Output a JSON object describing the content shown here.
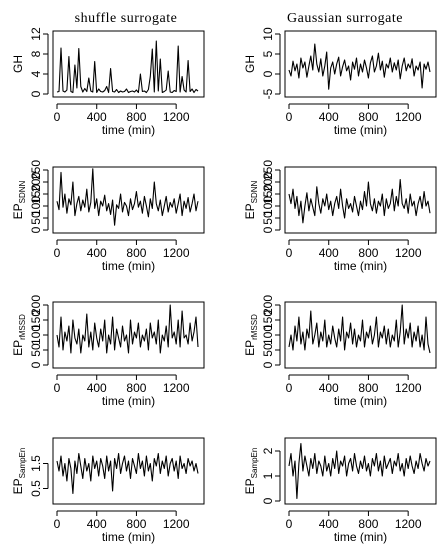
{
  "columns": [
    "shuffle surrogate",
    "Gaussian surrogate"
  ],
  "chart_data": [
    {
      "type": "line",
      "column": 0,
      "row": 0,
      "ylabel": "GH",
      "ylabel_sub": "",
      "xlabel": "time (min)",
      "xlim": [
        0,
        1440
      ],
      "ylim": [
        0,
        12
      ],
      "xticks": [
        0,
        400,
        800,
        1200
      ],
      "yticks": [
        0,
        4,
        8,
        12
      ],
      "x": [
        0,
        20,
        40,
        60,
        80,
        100,
        120,
        140,
        160,
        180,
        200,
        220,
        240,
        260,
        280,
        300,
        320,
        340,
        360,
        380,
        400,
        420,
        440,
        460,
        480,
        500,
        520,
        540,
        560,
        580,
        600,
        620,
        640,
        660,
        680,
        700,
        720,
        740,
        760,
        780,
        800,
        820,
        840,
        860,
        880,
        900,
        920,
        940,
        960,
        980,
        1000,
        1020,
        1040,
        1060,
        1080,
        1100,
        1120,
        1140,
        1160,
        1180,
        1200,
        1220,
        1240,
        1260,
        1280,
        1300,
        1320,
        1340,
        1360,
        1380,
        1400,
        1420
      ],
      "y": [
        0.4,
        0.5,
        9.2,
        0.6,
        0.4,
        0.8,
        7.5,
        0.5,
        0.3,
        5.8,
        1.2,
        9.1,
        1.5,
        0.4,
        1.1,
        0.5,
        3.2,
        0.6,
        0.4,
        6.5,
        0.3,
        1.0,
        0.5,
        0.4,
        0.7,
        1.5,
        0.3,
        5.1,
        0.5,
        0.4,
        0.9,
        0.3,
        0.6,
        0.4,
        0.5,
        1.0,
        0.3,
        0.5,
        0.6,
        0.4,
        0.8,
        0.3,
        4.0,
        0.5,
        0.6,
        0.3,
        0.9,
        3.5,
        9.0,
        0.4,
        10.6,
        0.6,
        7.0,
        0.3,
        0.5,
        0.8,
        4.6,
        0.4,
        0.3,
        0.7,
        0.5,
        9.6,
        0.4,
        3.5,
        0.8,
        0.4,
        6.7,
        0.5,
        1.0,
        0.3,
        0.9,
        0.6
      ]
    },
    {
      "type": "line",
      "column": 1,
      "row": 0,
      "ylabel": "GH",
      "ylabel_sub": "",
      "xlabel": "time (min)",
      "xlim": [
        0,
        1440
      ],
      "ylim": [
        -5,
        10
      ],
      "xticks": [
        0,
        400,
        800,
        1200
      ],
      "yticks": [
        -5,
        0,
        5,
        10
      ],
      "x": [
        0,
        20,
        40,
        60,
        80,
        100,
        120,
        140,
        160,
        180,
        200,
        220,
        240,
        260,
        280,
        300,
        320,
        340,
        360,
        380,
        400,
        420,
        440,
        460,
        480,
        500,
        520,
        540,
        560,
        580,
        600,
        620,
        640,
        660,
        680,
        700,
        720,
        740,
        760,
        780,
        800,
        820,
        840,
        860,
        880,
        900,
        920,
        940,
        960,
        980,
        1000,
        1020,
        1040,
        1060,
        1080,
        1100,
        1120,
        1140,
        1160,
        1180,
        1200,
        1220,
        1240,
        1260,
        1280,
        1300,
        1320,
        1340,
        1360,
        1380,
        1400,
        1420
      ],
      "y": [
        1.0,
        -0.5,
        3.2,
        0.8,
        2.5,
        -1.0,
        4.0,
        1.5,
        3.0,
        -0.8,
        2.0,
        4.5,
        1.0,
        7.5,
        2.5,
        0.5,
        3.8,
        -0.5,
        2.0,
        5.5,
        -3.8,
        1.5,
        3.0,
        0.0,
        2.5,
        4.2,
        -0.5,
        1.8,
        3.5,
        0.8,
        2.0,
        -1.5,
        3.0,
        1.2,
        4.0,
        -0.5,
        2.5,
        0.5,
        3.5,
        1.5,
        -1.0,
        2.8,
        4.5,
        0.5,
        2.0,
        5.2,
        1.0,
        3.2,
        -0.8,
        2.5,
        1.5,
        4.0,
        0.5,
        2.8,
        1.0,
        3.5,
        -1.2,
        2.0,
        4.0,
        0.8,
        2.5,
        1.5,
        3.8,
        -0.5,
        2.0,
        1.0,
        3.0,
        -3.5,
        2.5,
        1.2,
        3.0,
        0.5
      ]
    },
    {
      "type": "line",
      "column": 0,
      "row": 1,
      "ylabel": "EP",
      "ylabel_sub": "SDNN",
      "xlabel": "time (min)",
      "xlim": [
        0,
        1440
      ],
      "ylim": [
        0,
        250
      ],
      "xticks": [
        0,
        400,
        800,
        1200
      ],
      "yticks": [
        0,
        50,
        100,
        150,
        200,
        250
      ],
      "x": [
        0,
        20,
        40,
        60,
        80,
        100,
        120,
        140,
        160,
        180,
        200,
        220,
        240,
        260,
        280,
        300,
        320,
        340,
        360,
        380,
        400,
        420,
        440,
        460,
        480,
        500,
        520,
        540,
        560,
        580,
        600,
        620,
        640,
        660,
        680,
        700,
        720,
        740,
        760,
        780,
        800,
        820,
        840,
        860,
        880,
        900,
        920,
        940,
        960,
        980,
        1000,
        1020,
        1040,
        1060,
        1080,
        1100,
        1120,
        1140,
        1160,
        1180,
        1200,
        1220,
        1240,
        1260,
        1280,
        1300,
        1320,
        1340,
        1360,
        1380,
        1400,
        1420
      ],
      "y": [
        120,
        85,
        240,
        95,
        150,
        70,
        130,
        105,
        200,
        60,
        110,
        140,
        80,
        125,
        95,
        170,
        75,
        115,
        255,
        90,
        130,
        60,
        120,
        100,
        145,
        80,
        110,
        65,
        125,
        20,
        105,
        90,
        150,
        75,
        115,
        100,
        60,
        130,
        85,
        110,
        160,
        95,
        120,
        70,
        140,
        100,
        55,
        130,
        90,
        200,
        110,
        80,
        125,
        60,
        100,
        140,
        75,
        115,
        95,
        130,
        70,
        110,
        150,
        60,
        120,
        90,
        135,
        75,
        110,
        150,
        80,
        120
      ]
    },
    {
      "type": "line",
      "column": 1,
      "row": 1,
      "ylabel": "EP",
      "ylabel_sub": "SDNN",
      "xlabel": "time (min)",
      "xlim": [
        0,
        1440
      ],
      "ylim": [
        0,
        250
      ],
      "xticks": [
        0,
        400,
        800,
        1200
      ],
      "yticks": [
        0,
        50,
        100,
        150,
        200,
        250
      ],
      "x": [
        0,
        20,
        40,
        60,
        80,
        100,
        120,
        140,
        160,
        180,
        200,
        220,
        240,
        260,
        280,
        300,
        320,
        340,
        360,
        380,
        400,
        420,
        440,
        460,
        480,
        500,
        520,
        540,
        560,
        580,
        600,
        620,
        640,
        660,
        680,
        700,
        720,
        740,
        760,
        780,
        800,
        820,
        840,
        860,
        880,
        900,
        920,
        940,
        960,
        980,
        1000,
        1020,
        1040,
        1060,
        1080,
        1100,
        1120,
        1140,
        1160,
        1180,
        1200,
        1220,
        1240,
        1260,
        1280,
        1300,
        1320,
        1340,
        1360,
        1380,
        1400,
        1420
      ],
      "y": [
        150,
        110,
        170,
        90,
        140,
        60,
        120,
        30,
        100,
        155,
        80,
        130,
        95,
        60,
        180,
        110,
        70,
        130,
        100,
        150,
        85,
        120,
        60,
        110,
        140,
        90,
        170,
        100,
        50,
        130,
        90,
        110,
        75,
        140,
        100,
        60,
        120,
        85,
        160,
        100,
        200,
        110,
        80,
        130,
        70,
        120,
        100,
        150,
        60,
        130,
        90,
        110,
        170,
        80,
        140,
        100,
        210,
        110,
        90,
        130,
        70,
        150,
        100,
        120,
        60,
        110,
        140,
        90,
        160,
        100,
        120,
        70
      ]
    },
    {
      "type": "line",
      "column": 0,
      "row": 2,
      "ylabel": "EP",
      "ylabel_sub": "rMSSD",
      "xlabel": "time (min)",
      "xlim": [
        0,
        1440
      ],
      "ylim": [
        0,
        200
      ],
      "xticks": [
        0,
        400,
        800,
        1200
      ],
      "yticks": [
        0,
        50,
        100,
        150,
        200
      ],
      "x": [
        0,
        20,
        40,
        60,
        80,
        100,
        120,
        140,
        160,
        180,
        200,
        220,
        240,
        260,
        280,
        300,
        320,
        340,
        360,
        380,
        400,
        420,
        440,
        460,
        480,
        500,
        520,
        540,
        560,
        580,
        600,
        620,
        640,
        660,
        680,
        700,
        720,
        740,
        760,
        780,
        800,
        820,
        840,
        860,
        880,
        900,
        920,
        940,
        960,
        980,
        1000,
        1020,
        1040,
        1060,
        1080,
        1100,
        1120,
        1140,
        1160,
        1180,
        1200,
        1220,
        1240,
        1260,
        1280,
        1300,
        1320,
        1340,
        1360,
        1380,
        1400,
        1420
      ],
      "y": [
        100,
        60,
        160,
        50,
        110,
        80,
        130,
        40,
        150,
        90,
        70,
        120,
        40,
        100,
        80,
        170,
        60,
        110,
        50,
        140,
        90,
        60,
        120,
        80,
        150,
        40,
        100,
        70,
        160,
        50,
        120,
        90,
        60,
        130,
        80,
        100,
        40,
        150,
        70,
        110,
        90,
        140,
        60,
        100,
        80,
        120,
        50,
        140,
        90,
        110,
        70,
        150,
        40,
        100,
        80,
        130,
        60,
        200,
        90,
        110,
        70,
        150,
        60,
        180,
        90,
        100,
        70,
        140,
        80,
        110,
        160,
        60
      ]
    },
    {
      "type": "line",
      "column": 1,
      "row": 2,
      "ylabel": "EP",
      "ylabel_sub": "rMSSD",
      "xlabel": "time (min)",
      "xlim": [
        0,
        1440
      ],
      "ylim": [
        0,
        200
      ],
      "xticks": [
        0,
        400,
        800,
        1200
      ],
      "yticks": [
        0,
        50,
        100,
        150,
        200
      ],
      "x": [
        0,
        20,
        40,
        60,
        80,
        100,
        120,
        140,
        160,
        180,
        200,
        220,
        240,
        260,
        280,
        300,
        320,
        340,
        360,
        380,
        400,
        420,
        440,
        460,
        480,
        500,
        520,
        540,
        560,
        580,
        600,
        620,
        640,
        660,
        680,
        700,
        720,
        740,
        760,
        780,
        800,
        820,
        840,
        860,
        880,
        900,
        920,
        940,
        960,
        980,
        1000,
        1020,
        1040,
        1060,
        1080,
        1100,
        1120,
        1140,
        1160,
        1180,
        1200,
        1220,
        1240,
        1260,
        1280,
        1300,
        1320,
        1340,
        1360,
        1380,
        1400,
        1420
      ],
      "y": [
        60,
        100,
        50,
        130,
        80,
        160,
        70,
        110,
        50,
        120,
        90,
        180,
        70,
        100,
        140,
        60,
        110,
        80,
        150,
        60,
        100,
        70,
        130,
        90,
        60,
        120,
        80,
        160,
        50,
        110,
        90,
        140,
        70,
        120,
        60,
        100,
        80,
        150,
        60,
        110,
        90,
        130,
        70,
        100,
        160,
        60,
        110,
        90,
        130,
        70,
        120,
        60,
        100,
        80,
        150,
        60,
        110,
        200,
        70,
        120,
        90,
        140,
        60,
        110,
        80,
        130,
        60,
        100,
        50,
        160,
        70,
        40
      ]
    },
    {
      "type": "line",
      "column": 0,
      "row": 3,
      "ylabel": "EP",
      "ylabel_sub": "SampEn",
      "xlabel": "time (min)",
      "xlim": [
        0,
        1440
      ],
      "ylim": [
        0,
        2.4
      ],
      "xticks": [
        0,
        400,
        800,
        1200
      ],
      "yticks": [
        0.5,
        1.5
      ],
      "x": [
        0,
        20,
        40,
        60,
        80,
        100,
        120,
        140,
        160,
        180,
        200,
        220,
        240,
        260,
        280,
        300,
        320,
        340,
        360,
        380,
        400,
        420,
        440,
        460,
        480,
        500,
        520,
        540,
        560,
        580,
        600,
        620,
        640,
        660,
        680,
        700,
        720,
        740,
        760,
        780,
        800,
        820,
        840,
        860,
        880,
        900,
        920,
        940,
        960,
        980,
        1000,
        1020,
        1040,
        1060,
        1080,
        1100,
        1120,
        1140,
        1160,
        1180,
        1200,
        1220,
        1240,
        1260,
        1280,
        1300,
        1320,
        1340,
        1360,
        1380,
        1400,
        1420
      ],
      "y": [
        1.6,
        1.2,
        1.8,
        1.0,
        1.5,
        0.8,
        1.7,
        1.3,
        0.3,
        1.6,
        1.1,
        1.9,
        1.4,
        0.9,
        1.7,
        1.2,
        1.5,
        0.8,
        1.8,
        1.3,
        1.6,
        1.0,
        1.7,
        1.4,
        0.9,
        1.8,
        1.2,
        1.6,
        0.4,
        1.7,
        1.3,
        1.9,
        1.1,
        1.5,
        1.8,
        1.2,
        1.6,
        0.9,
        1.7,
        1.4,
        1.1,
        1.9,
        1.3,
        1.6,
        1.0,
        1.8,
        1.2,
        1.5,
        0.8,
        1.7,
        1.4,
        1.9,
        1.1,
        1.6,
        1.3,
        1.8,
        1.0,
        1.5,
        1.7,
        1.2,
        1.6,
        0.9,
        1.8,
        1.3,
        1.5,
        1.1,
        1.7,
        1.4,
        1.6,
        1.2,
        1.5,
        1.1
      ]
    },
    {
      "type": "line",
      "column": 1,
      "row": 3,
      "ylabel": "EP",
      "ylabel_sub": "SampEn",
      "xlabel": "time (min)",
      "xlim": [
        0,
        1440
      ],
      "ylim": [
        0,
        2.4
      ],
      "xticks": [
        0,
        400,
        800,
        1200
      ],
      "yticks": [
        0.0,
        1.0,
        2.0
      ],
      "x": [
        0,
        20,
        40,
        60,
        80,
        100,
        120,
        140,
        160,
        180,
        200,
        220,
        240,
        260,
        280,
        300,
        320,
        340,
        360,
        380,
        400,
        420,
        440,
        460,
        480,
        500,
        520,
        540,
        560,
        580,
        600,
        620,
        640,
        660,
        680,
        700,
        720,
        740,
        760,
        780,
        800,
        820,
        840,
        860,
        880,
        900,
        920,
        940,
        960,
        980,
        1000,
        1020,
        1040,
        1060,
        1080,
        1100,
        1120,
        1140,
        1160,
        1180,
        1200,
        1220,
        1240,
        1260,
        1280,
        1300,
        1320,
        1340,
        1360,
        1380,
        1400,
        1420
      ],
      "y": [
        1.4,
        1.9,
        1.0,
        1.6,
        0.1,
        1.5,
        2.3,
        1.2,
        1.8,
        1.4,
        1.0,
        1.7,
        1.3,
        1.9,
        1.1,
        1.6,
        1.4,
        1.0,
        1.8,
        1.2,
        1.5,
        1.0,
        1.7,
        1.3,
        2.0,
        1.1,
        1.6,
        1.4,
        1.8,
        1.0,
        1.5,
        1.7,
        1.2,
        1.9,
        1.4,
        1.1,
        1.6,
        1.3,
        1.8,
        1.2,
        1.5,
        1.0,
        1.7,
        1.4,
        1.9,
        1.2,
        1.6,
        1.0,
        1.8,
        1.3,
        1.5,
        1.7,
        1.1,
        1.6,
        1.4,
        1.9,
        1.2,
        1.5,
        1.0,
        1.7,
        1.3,
        1.8,
        1.4,
        1.1,
        1.6,
        1.3,
        1.9,
        1.5,
        1.2,
        1.7,
        1.4,
        1.6
      ]
    }
  ]
}
